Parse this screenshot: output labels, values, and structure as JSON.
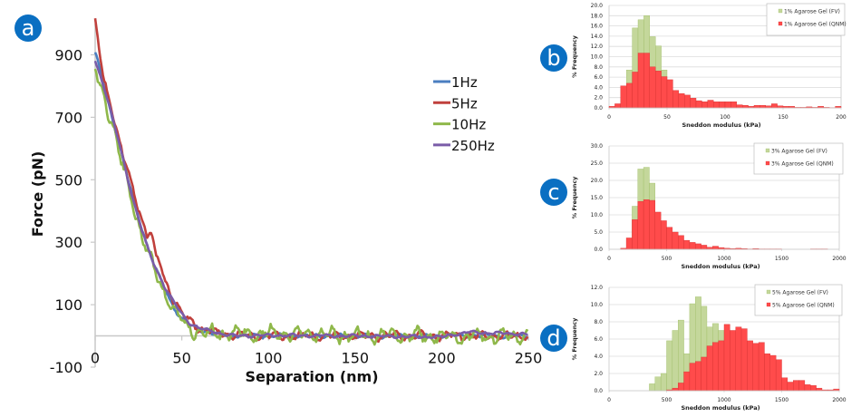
{
  "colors": {
    "badge": "#0a6fc2",
    "s1Hz": "#4a7ec0",
    "s5Hz": "#c0403c",
    "s10Hz": "#8fb84a",
    "s250Hz": "#7a5ca8",
    "fv_fill": "#c4d79b",
    "fv_stroke": "#9fbd66",
    "qnm_fill": "#ff4b4b",
    "qnm_stroke": "#d63030",
    "grid": "#dcdcdc",
    "axis": "#c8c8c8"
  },
  "panels": {
    "a": "a",
    "b": "b",
    "c": "c",
    "d": "d"
  },
  "chart_data": [
    {
      "id": "a",
      "type": "line",
      "title": "",
      "xlabel": "Separation (nm)",
      "ylabel": "Force (pN)",
      "xlim": [
        0,
        250
      ],
      "ylim": [
        -100,
        1000
      ],
      "xticks": [
        "0",
        "50",
        "100",
        "150",
        "200",
        "250"
      ],
      "xtick_values": [
        0,
        50,
        100,
        150,
        200,
        250
      ],
      "yticks": [
        "900",
        "700",
        "500",
        "300",
        "100",
        "-100"
      ],
      "ytick_values": [
        900,
        700,
        500,
        300,
        100,
        -100
      ],
      "legend_position": "top-right",
      "series": [
        {
          "name": "1Hz",
          "color_key": "s1Hz",
          "x": [
            0,
            5,
            10,
            15,
            20,
            25,
            30,
            35,
            40,
            45,
            50,
            55,
            60,
            70,
            80,
            100,
            150,
            200,
            250
          ],
          "y": [
            910,
            800,
            695,
            590,
            480,
            380,
            290,
            215,
            150,
            95,
            55,
            32,
            20,
            8,
            2,
            0,
            0,
            0,
            0
          ]
        },
        {
          "name": "5Hz",
          "color_key": "s5Hz",
          "x": [
            0,
            5,
            10,
            15,
            20,
            25,
            30,
            32,
            35,
            38,
            40,
            45,
            50,
            55,
            60,
            70,
            80,
            100,
            150,
            200,
            250
          ],
          "y": [
            1000,
            820,
            720,
            600,
            500,
            410,
            320,
            340,
            250,
            230,
            180,
            120,
            75,
            45,
            25,
            10,
            3,
            0,
            0,
            0,
            0
          ]
        },
        {
          "name": "10Hz",
          "color_key": "s10Hz",
          "x": [
            0,
            5,
            10,
            15,
            20,
            25,
            30,
            35,
            40,
            45,
            50,
            55,
            60,
            70,
            80,
            90,
            100,
            150,
            200,
            250
          ],
          "y": [
            850,
            770,
            680,
            560,
            460,
            360,
            270,
            200,
            140,
            90,
            45,
            20,
            15,
            5,
            10,
            5,
            10,
            0,
            0,
            0
          ]
        },
        {
          "name": "250Hz",
          "color_key": "s250Hz",
          "x": [
            0,
            5,
            10,
            15,
            20,
            25,
            30,
            35,
            40,
            45,
            50,
            55,
            60,
            70,
            80,
            100,
            150,
            200,
            215,
            250
          ],
          "y": [
            880,
            800,
            700,
            590,
            475,
            375,
            285,
            215,
            160,
            110,
            70,
            40,
            25,
            10,
            0,
            2,
            0,
            -3,
            12,
            5
          ]
        }
      ]
    },
    {
      "id": "b",
      "type": "bar",
      "xlabel": "Sneddon modulus (kPa)",
      "ylabel": "% Frequency",
      "xlim": [
        0,
        200
      ],
      "ylim": [
        0,
        20
      ],
      "bin_width": 5,
      "xticks": [
        "0",
        "50",
        "100",
        "150",
        "200"
      ],
      "xtick_values": [
        0,
        50,
        100,
        150,
        200
      ],
      "yticks": [
        "0.0",
        "2.0",
        "4.0",
        "6.0",
        "8.0",
        "10.0",
        "12.0",
        "14.0",
        "16.0",
        "18.0",
        "20.0"
      ],
      "ytick_values": [
        0,
        2,
        4,
        6,
        8,
        10,
        12,
        14,
        16,
        18,
        20
      ],
      "legend_position": "top-right",
      "series": [
        {
          "name": "1% Agarose Gel (FV)",
          "type": "fv",
          "bin_start": 15,
          "values": [
            7.4,
            15.6,
            17.2,
            18.0,
            13.9,
            12.1,
            7.4
          ]
        },
        {
          "name": "1% Agarose Gel (QNM)",
          "type": "qnm",
          "bin_start": 0,
          "values": [
            0.3,
            0.8,
            4.3,
            4.8,
            7.0,
            10.7,
            10.7,
            8.0,
            7.2,
            6.1,
            5.5,
            3.4,
            2.8,
            2.5,
            1.9,
            1.4,
            1.2,
            1.5,
            1.2,
            1.2,
            1.2,
            1.2,
            0.6,
            0.5,
            0.3,
            0.5,
            0.5,
            0.4,
            0.8,
            0.4,
            0.3,
            0.3,
            0.1,
            0.1,
            0.2,
            0.1,
            0.3,
            0.1,
            0.05,
            0.3
          ]
        }
      ]
    },
    {
      "id": "c",
      "type": "bar",
      "xlabel": "Sneddon modulus (kPa)",
      "ylabel": "% Frequency",
      "xlim": [
        0,
        2000
      ],
      "ylim": [
        0,
        30
      ],
      "bin_width": 50,
      "xticks": [
        "0",
        "500",
        "1000",
        "1500",
        "2000"
      ],
      "xtick_values": [
        0,
        500,
        1000,
        1500,
        2000
      ],
      "yticks": [
        "0.0",
        "5.0",
        "10.0",
        "15.0",
        "20.0",
        "25.0",
        "30.0"
      ],
      "ytick_values": [
        0,
        5,
        10,
        15,
        20,
        25,
        30
      ],
      "legend_position": "top-right",
      "series": [
        {
          "name": "3% Agarose Gel (FV)",
          "type": "fv",
          "bin_start": 200,
          "values": [
            12.5,
            23.3,
            23.8,
            19.2
          ]
        },
        {
          "name": "3% Agarose Gel (QNM)",
          "type": "qnm",
          "bin_start": 100,
          "values": [
            0.3,
            3.3,
            8.6,
            13.9,
            14.4,
            14.2,
            10.8,
            8.3,
            6.4,
            5.0,
            4.0,
            2.6,
            2.0,
            1.6,
            1.2,
            0.6,
            0.9,
            0.5,
            0.3,
            0.2,
            0.3,
            0.2,
            0.1,
            0.2,
            0.1,
            0.1,
            0.1,
            0.1,
            0.0,
            0.0,
            0.0,
            0.0,
            0.0,
            0.1,
            0.1,
            0.1
          ]
        }
      ]
    },
    {
      "id": "d",
      "type": "bar",
      "xlabel": "Sneddon modulus (kPa)",
      "ylabel": "% Frequency",
      "xlim": [
        0,
        2000
      ],
      "ylim": [
        0,
        12
      ],
      "bin_width": 50,
      "xticks": [
        "0",
        "500",
        "1000",
        "1500",
        "2000"
      ],
      "xtick_values": [
        0,
        500,
        1000,
        1500,
        2000
      ],
      "yticks": [
        "0.0",
        "2.0",
        "4.0",
        "6.0",
        "8.0",
        "10.0",
        "12.0"
      ],
      "ytick_values": [
        0,
        2,
        4,
        6,
        8,
        10,
        12
      ],
      "legend_position": "top-right",
      "series": [
        {
          "name": "5% Agarose Gel (FV)",
          "type": "fv",
          "bin_start": 350,
          "values": [
            0.8,
            1.6,
            2.0,
            5.8,
            7.0,
            8.2,
            4.3,
            10.1,
            10.9,
            9.8,
            7.4,
            7.8,
            7.0
          ]
        },
        {
          "name": "5% Agarose Gel (QNM)",
          "type": "qnm",
          "bin_start": 500,
          "values": [
            0.1,
            0.3,
            0.9,
            2.2,
            3.2,
            3.4,
            3.9,
            5.2,
            5.6,
            5.8,
            7.7,
            7.0,
            7.4,
            7.2,
            5.8,
            5.5,
            5.6,
            4.3,
            4.1,
            3.6,
            1.5,
            1.0,
            1.2,
            1.2,
            0.7,
            0.6,
            0.3,
            0.1,
            0.1,
            0.2
          ]
        }
      ]
    }
  ]
}
